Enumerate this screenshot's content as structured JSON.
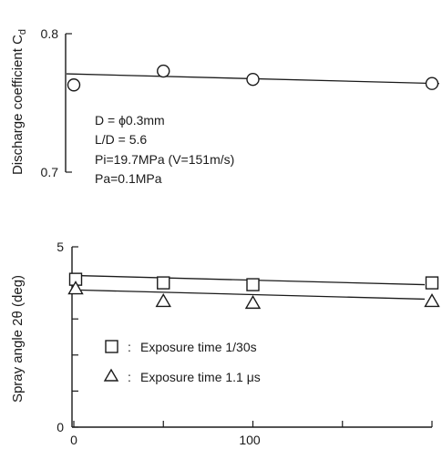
{
  "chart_data": [
    {
      "type": "scatter",
      "ylabel": "Discharge coefficient C_d",
      "ylim": [
        0.7,
        0.8
      ],
      "yticks": [
        "0.8",
        "0.7"
      ],
      "x": [
        0,
        50,
        100,
        200
      ],
      "series": [
        {
          "marker": "circle",
          "values": [
            0.763,
            0.773,
            0.767,
            0.764
          ]
        }
      ],
      "fit_line": [
        0.771,
        0.764
      ],
      "annotations": [
        "D = ϕ0.3mm",
        "L/D = 5.6",
        "Pi=19.7MPa (V=151m/s)",
        "Pa=0.1MPa"
      ]
    },
    {
      "type": "scatter",
      "ylabel": "Spray angle 2θ (deg)",
      "ylim": [
        0,
        5
      ],
      "yticks": [
        "5",
        "0"
      ],
      "xlim": [
        0,
        200
      ],
      "xticks": [
        "0",
        "100"
      ],
      "x": [
        0,
        50,
        100,
        200
      ],
      "series": [
        {
          "name": "Exposure time 1/30s",
          "marker": "square",
          "values": [
            4.1,
            4.0,
            3.95,
            4.0
          ]
        },
        {
          "name": "Exposure time 1.1 μs",
          "marker": "triangle",
          "values": [
            3.85,
            3.5,
            3.45,
            3.5
          ]
        }
      ],
      "fit_lines": [
        [
          4.2,
          3.95
        ],
        [
          3.8,
          3.55
        ]
      ],
      "legend_separator": ":"
    }
  ]
}
